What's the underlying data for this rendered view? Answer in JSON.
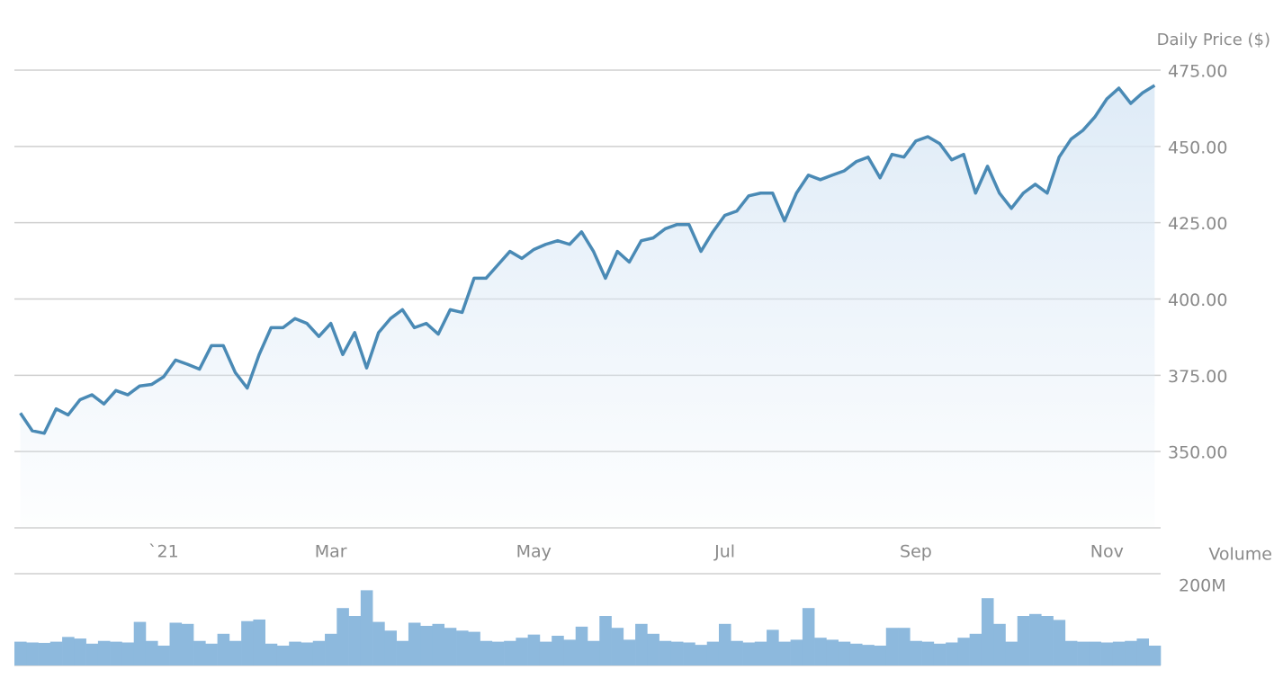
{
  "chart_data": {
    "type": "line",
    "ylabel": "Daily Price ($)",
    "y2label": "Volume",
    "categories": [
      null,
      null,
      null,
      null,
      null,
      null,
      null,
      null,
      null,
      null,
      null,
      null,
      "`21",
      null,
      null,
      null,
      null,
      null,
      null,
      null,
      null,
      null,
      null,
      null,
      null,
      null,
      "Mar",
      null,
      null,
      null,
      null,
      null,
      null,
      null,
      null,
      null,
      null,
      null,
      null,
      null,
      null,
      null,
      null,
      "May",
      null,
      null,
      null,
      null,
      null,
      null,
      null,
      null,
      null,
      null,
      null,
      null,
      null,
      null,
      null,
      "Jul",
      null,
      null,
      null,
      null,
      null,
      null,
      null,
      null,
      null,
      null,
      null,
      null,
      null,
      null,
      null,
      "Sep",
      null,
      null,
      null,
      null,
      null,
      null,
      null,
      null,
      null,
      null,
      null,
      null,
      null,
      null,
      null,
      "Nov",
      null,
      null,
      null,
      null
    ],
    "series": [
      {
        "color": "#4a8ab5",
        "values": [
          362.6,
          356.8,
          356,
          364,
          362,
          367,
          368.6,
          365.6,
          370,
          368.6,
          371.5,
          372,
          374.5,
          380,
          378.6,
          377,
          384.7,
          384.7,
          375.9,
          370.8,
          381.8,
          390.6,
          390.6,
          393.6,
          392,
          387.7,
          392,
          381.8,
          389,
          377.4,
          389,
          393.6,
          396.5,
          390.6,
          392,
          388.5,
          396.5,
          395.6,
          406.8,
          406.8,
          411.2,
          415.6,
          413.3,
          416.2,
          417.9,
          419.1,
          417.9,
          422,
          415.6,
          406.8,
          415.6,
          412.1,
          419.1,
          420,
          423,
          424.4,
          424.4,
          415.6,
          422,
          427.4,
          428.8,
          433.8,
          434.7,
          434.7,
          425.6,
          434.7,
          440.6,
          439.1,
          440.6,
          442,
          445,
          446.5,
          439.7,
          447.4,
          446.5,
          451.8,
          453.2,
          450.9,
          445.6,
          447.4,
          434.7,
          443.5,
          434.7,
          429.7,
          434.7,
          437.6,
          434.7,
          446.5,
          452.4,
          455.3,
          459.7,
          465.6,
          469.1,
          464.1,
          467.6,
          470
        ]
      },
      {
        "type": "bar",
        "axis": "y2",
        "color": "#8db9dd",
        "values": [
          60000000,
          58000000,
          57000000,
          60000000,
          72000000,
          68000000,
          55000000,
          62000000,
          60000000,
          58000000,
          110000000,
          62000000,
          50000000,
          108000000,
          105000000,
          62000000,
          55000000,
          80000000,
          62000000,
          112000000,
          116000000,
          55000000,
          50000000,
          60000000,
          58000000,
          62000000,
          80000000,
          145000000,
          125000000,
          190000000,
          110000000,
          88000000,
          62000000,
          108000000,
          100000000,
          105000000,
          95000000,
          88000000,
          85000000,
          62000000,
          60000000,
          62000000,
          70000000,
          78000000,
          60000000,
          75000000,
          65000000,
          98000000,
          62000000,
          125000000,
          95000000,
          65000000,
          105000000,
          80000000,
          62000000,
          60000000,
          58000000,
          52000000,
          60000000,
          105000000,
          62000000,
          58000000,
          60000000,
          90000000,
          60000000,
          65000000,
          145000000,
          70000000,
          65000000,
          60000000,
          55000000,
          52000000,
          50000000,
          95000000,
          95000000,
          62000000,
          60000000,
          55000000,
          58000000,
          70000000,
          80000000,
          170000000,
          105000000,
          60000000,
          125000000,
          130000000,
          125000000,
          115000000,
          62000000,
          60000000,
          60000000,
          58000000,
          60000000,
          62000000,
          68000000,
          50000000
        ]
      }
    ],
    "ylim": [
      325,
      475
    ],
    "yticks": [
      {
        "value": 350,
        "label": "350.00"
      },
      {
        "value": 375,
        "label": "375.00"
      },
      {
        "value": 400,
        "label": "400.00"
      },
      {
        "value": 425,
        "label": "425.00"
      },
      {
        "value": 450,
        "label": "450.00"
      },
      {
        "value": 475,
        "label": "475.00"
      }
    ],
    "y2lim": [
      0,
      200000000
    ],
    "y2ticks": [
      {
        "value": 200000000,
        "label": "200M"
      }
    ],
    "grid": true
  }
}
